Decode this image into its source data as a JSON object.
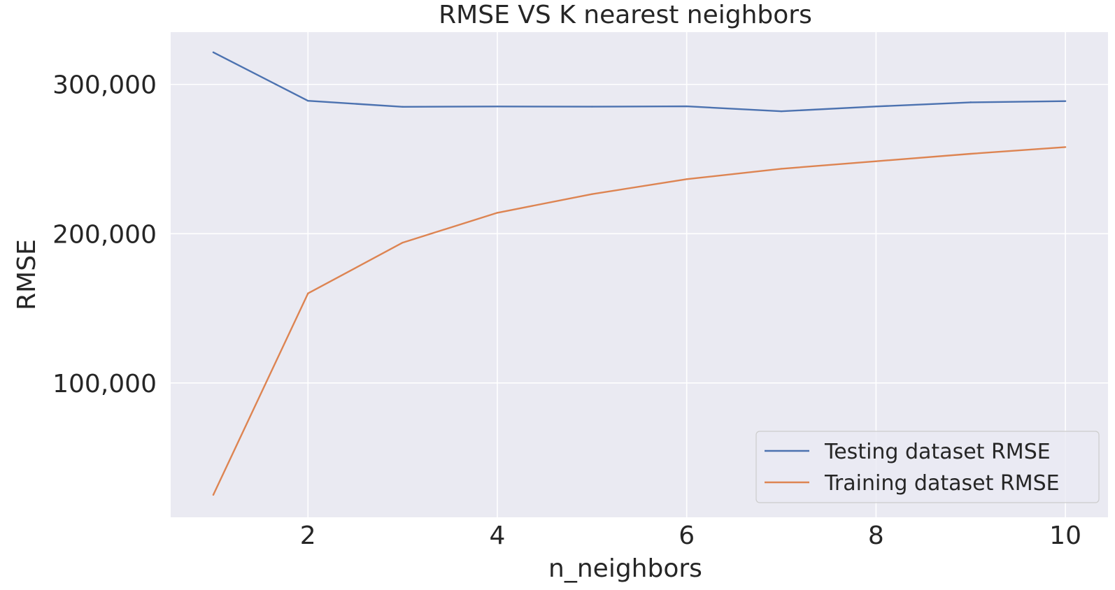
{
  "chart_data": {
    "type": "line",
    "title": "RMSE VS K nearest neighbors",
    "xlabel": "n_neighbors",
    "ylabel": "RMSE",
    "x": [
      1,
      2,
      3,
      4,
      5,
      6,
      7,
      8,
      9,
      10
    ],
    "xlim": [
      0.55,
      10.45
    ],
    "ylim": [
      10000,
      335000
    ],
    "x_ticks": [
      2,
      4,
      6,
      8,
      10
    ],
    "x_tick_labels": [
      "2",
      "4",
      "6",
      "8",
      "10"
    ],
    "y_ticks": [
      100000,
      200000,
      300000
    ],
    "y_tick_labels": [
      "100,000",
      "200,000",
      "300,000"
    ],
    "grid": true,
    "legend_position": "lower-right",
    "background_color": "#eaeaf2",
    "grid_color": "#ffffff",
    "series": [
      {
        "name": "Testing dataset RMSE",
        "color": "#4c72b0",
        "values": [
          321500,
          289000,
          285000,
          285200,
          285100,
          285300,
          282000,
          285200,
          288000,
          288800
        ]
      },
      {
        "name": "Training dataset RMSE",
        "color": "#dd8452",
        "values": [
          25000,
          160000,
          194000,
          214000,
          226500,
          236500,
          243500,
          248500,
          253500,
          258000
        ]
      }
    ]
  }
}
